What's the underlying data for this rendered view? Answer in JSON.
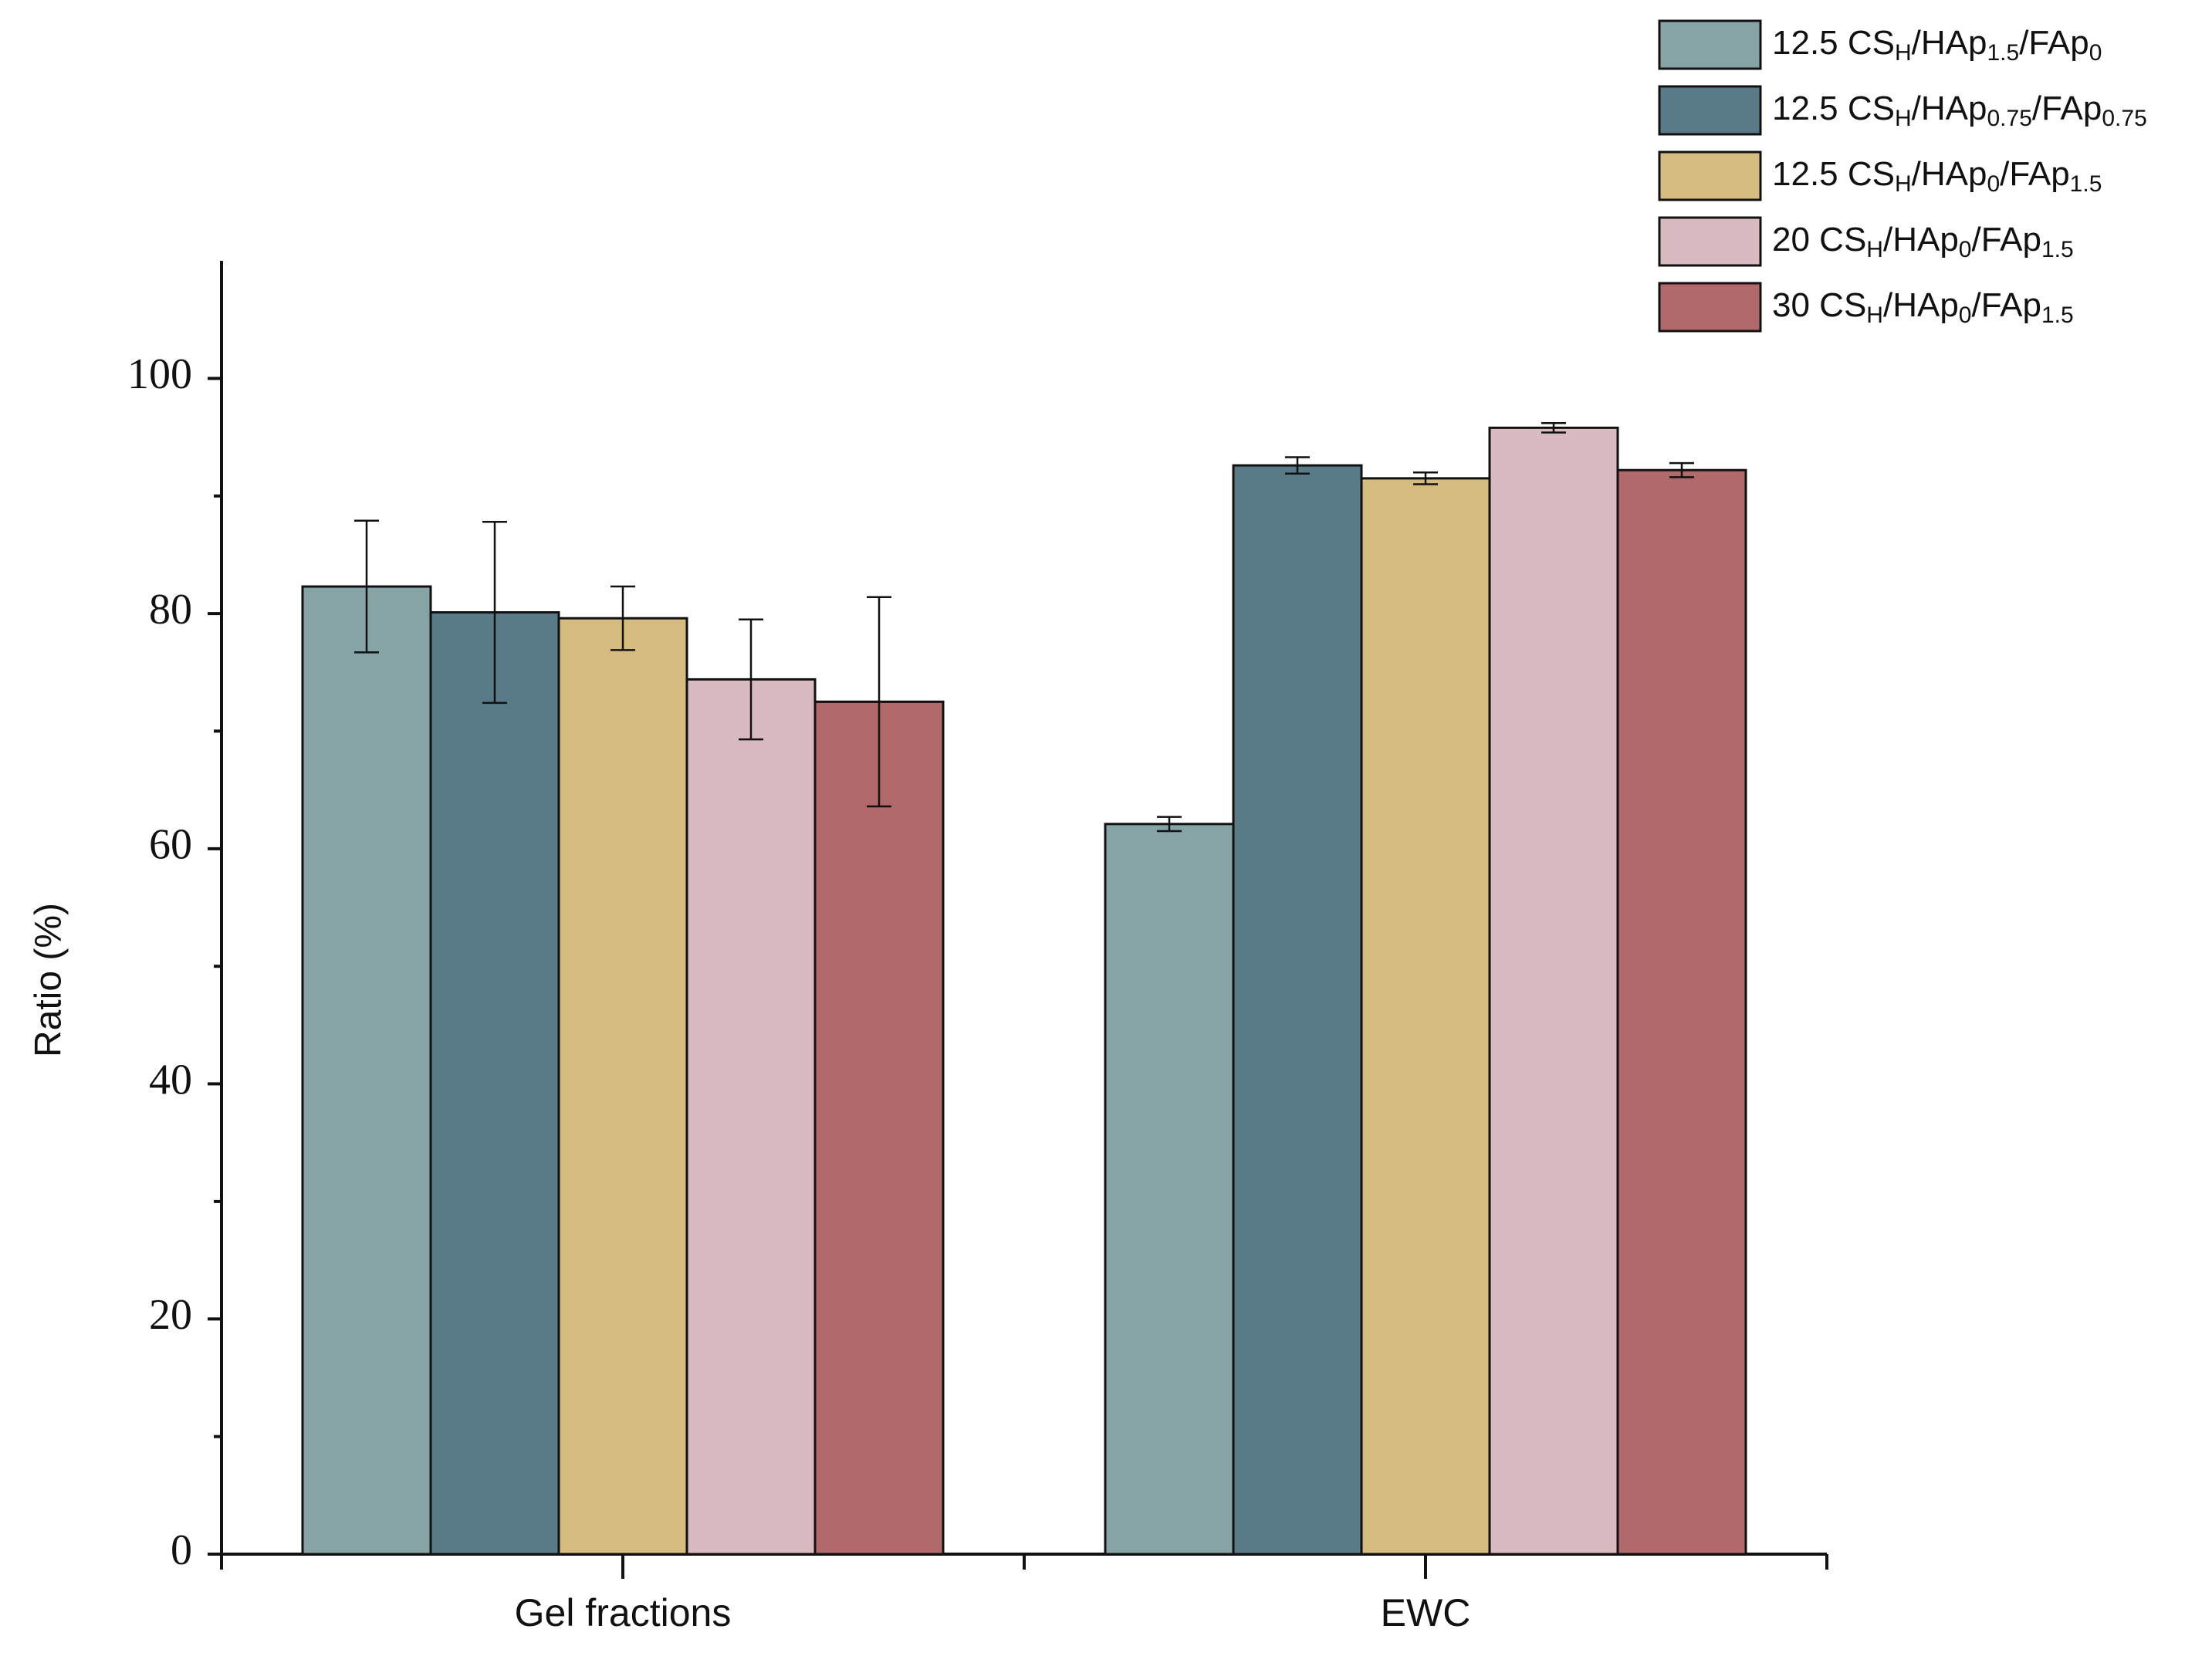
{
  "chart_data": {
    "type": "bar",
    "y_label": "Ratio (%)",
    "categories": [
      "Gel fractions",
      "EWC"
    ],
    "series": [
      {
        "name": [
          "12.5 CS",
          "H",
          "/HAp",
          "1.5",
          "/FAp",
          "0"
        ],
        "color": "#86a3a6",
        "values": [
          82.3,
          62.1
        ],
        "errors": [
          5.6,
          0.6
        ]
      },
      {
        "name": [
          "12.5 CS",
          "H",
          "/HAp",
          "0.75",
          "/FAp",
          "0.75"
        ],
        "color": "#587a89",
        "values": [
          80.1,
          92.6
        ],
        "errors": [
          7.7,
          0.7
        ]
      },
      {
        "name": [
          "12.5 CS",
          "H",
          "/HAp",
          "0",
          "/FAp",
          "1.5"
        ],
        "color": "#d5bb80",
        "values": [
          79.6,
          91.5
        ],
        "errors": [
          2.7,
          0.5
        ]
      },
      {
        "name": [
          "20 CS",
          "H",
          "/HAp",
          "0",
          "/FAp",
          "1.5"
        ],
        "color": "#d9bac0",
        "values": [
          74.4,
          95.8
        ],
        "errors": [
          5.1,
          0.4
        ]
      },
      {
        "name": [
          "30 CS",
          "H",
          "/HAp",
          "0",
          "/FAp",
          "1.5"
        ],
        "color": "#b1696c",
        "values": [
          72.5,
          92.2
        ],
        "errors": [
          8.9,
          0.6
        ]
      }
    ],
    "ylim": [
      0,
      110
    ],
    "yticks": [
      0,
      20,
      40,
      60,
      80,
      100
    ],
    "grid": false,
    "legend": "top-right"
  }
}
